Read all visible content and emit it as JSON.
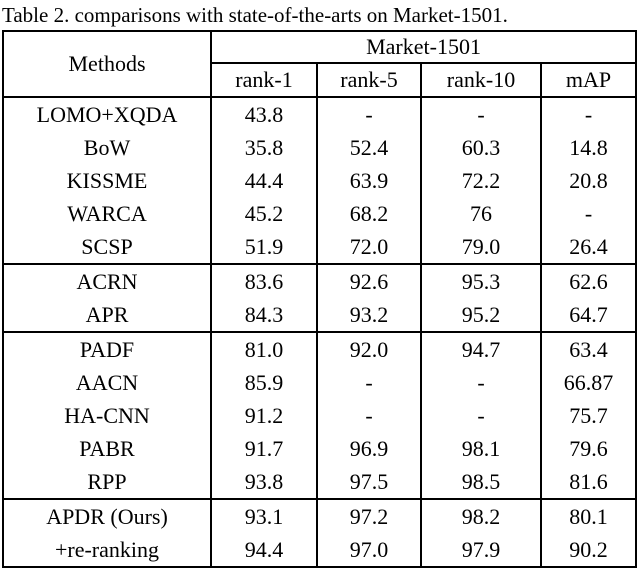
{
  "caption": "Table 2. comparisons with state-of-the-arts on Market-1501.",
  "table": {
    "methods_header": "Methods",
    "dataset_header": "Market-1501",
    "columns": [
      "rank-1",
      "rank-5",
      "rank-10",
      "mAP"
    ],
    "groups": [
      {
        "rows": [
          {
            "method": "LOMO+XQDA",
            "values": [
              "43.8",
              "-",
              "-",
              "-"
            ],
            "bold": [
              false,
              false,
              false,
              false
            ]
          },
          {
            "method": "BoW",
            "values": [
              "35.8",
              "52.4",
              "60.3",
              "14.8"
            ],
            "bold": [
              false,
              false,
              false,
              false
            ]
          },
          {
            "method": "KISSME",
            "values": [
              "44.4",
              "63.9",
              "72.2",
              "20.8"
            ],
            "bold": [
              false,
              false,
              false,
              false
            ]
          },
          {
            "method": "WARCA",
            "values": [
              "45.2",
              "68.2",
              "76",
              "-"
            ],
            "bold": [
              false,
              false,
              false,
              false
            ]
          },
          {
            "method": "SCSP",
            "values": [
              "51.9",
              "72.0",
              "79.0",
              "26.4"
            ],
            "bold": [
              false,
              false,
              false,
              false
            ]
          }
        ]
      },
      {
        "rows": [
          {
            "method": "ACRN",
            "values": [
              "83.6",
              "92.6",
              "95.3",
              "62.6"
            ],
            "bold": [
              false,
              false,
              false,
              false
            ]
          },
          {
            "method": "APR",
            "values": [
              "84.3",
              "93.2",
              "95.2",
              "64.7"
            ],
            "bold": [
              false,
              false,
              false,
              false
            ]
          }
        ]
      },
      {
        "rows": [
          {
            "method": "PADF",
            "values": [
              "81.0",
              "92.0",
              "94.7",
              "63.4"
            ],
            "bold": [
              false,
              false,
              false,
              false
            ]
          },
          {
            "method": "AACN",
            "values": [
              "85.9",
              "-",
              "-",
              "66.87"
            ],
            "bold": [
              false,
              false,
              false,
              false
            ]
          },
          {
            "method": "HA-CNN",
            "values": [
              "91.2",
              "-",
              "-",
              "75.7"
            ],
            "bold": [
              false,
              false,
              false,
              false
            ]
          },
          {
            "method": "PABR",
            "values": [
              "91.7",
              "96.9",
              "98.1",
              "79.6"
            ],
            "bold": [
              false,
              false,
              false,
              false
            ]
          },
          {
            "method": "RPP",
            "values": [
              "93.8",
              "97.5",
              "98.5",
              "81.6"
            ],
            "bold": [
              false,
              true,
              true,
              false
            ]
          }
        ]
      },
      {
        "rows": [
          {
            "method": "APDR (Ours)",
            "values": [
              "93.1",
              "97.2",
              "98.2",
              "80.1"
            ],
            "bold": [
              false,
              false,
              false,
              false
            ]
          },
          {
            "method": "+re-ranking",
            "values": [
              "94.4",
              "97.0",
              "97.9",
              "90.2"
            ],
            "bold": [
              true,
              false,
              false,
              true
            ]
          }
        ]
      }
    ]
  }
}
